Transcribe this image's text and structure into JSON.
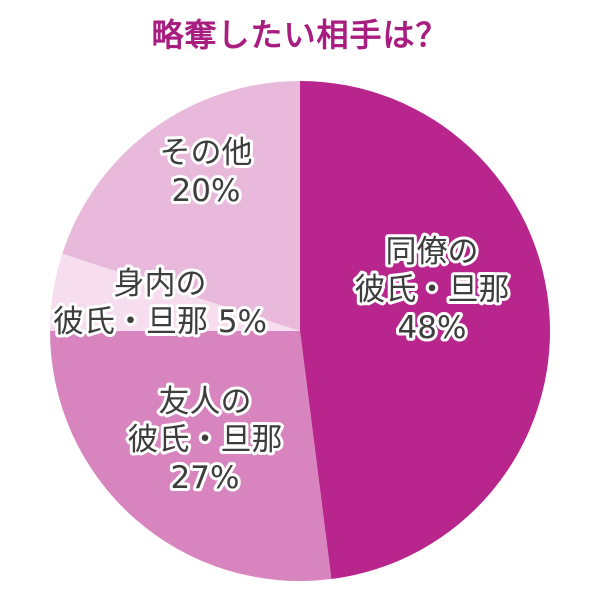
{
  "chart_data": {
    "type": "pie",
    "title": "略奪したい相手は？",
    "categories": [
      "同僚の彼氏・旦那",
      "友人の彼氏・旦那",
      "身内の彼氏・旦那",
      "その他"
    ],
    "values": [
      48,
      27,
      5,
      20
    ],
    "slice_labels": [
      {
        "lines": [
          "同僚の",
          "彼氏・旦那",
          "48%"
        ]
      },
      {
        "lines": [
          "友人の",
          "彼氏・旦那",
          "27%"
        ]
      },
      {
        "lines": [
          "身内の",
          "彼氏・旦那  5%"
        ]
      },
      {
        "lines": [
          "その他",
          "20%"
        ]
      }
    ],
    "colors": [
      "#b8268d",
      "#d784bf",
      "#f6deef",
      "#e9b9dc"
    ],
    "title_color": "#a81d80",
    "start_angle_deg": 0,
    "direction": "clockwise",
    "legend": "none"
  }
}
